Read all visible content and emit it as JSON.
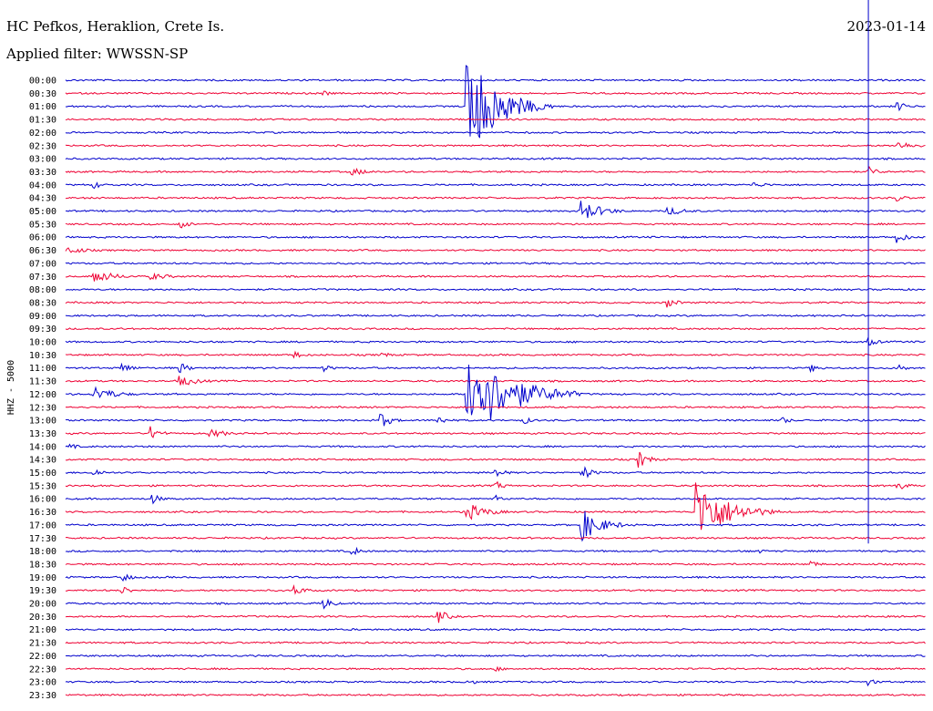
{
  "header": {
    "station": "HC Pefkos, Heraklion, Crete Is.",
    "filter": "Applied filter: WWSSN-SP",
    "date": "2023-01-14"
  },
  "chart_data": {
    "type": "line",
    "title": "HC Pefkos, Heraklion, Crete Is.",
    "subtitle": "Applied filter: WWSSN-SP",
    "ylabel": "HHZ - 5000",
    "row_labels": [
      "00:00",
      "00:30",
      "01:00",
      "01:30",
      "02:00",
      "02:30",
      "03:00",
      "03:30",
      "04:00",
      "04:30",
      "05:00",
      "05:30",
      "06:00",
      "06:30",
      "07:00",
      "07:30",
      "08:00",
      "08:30",
      "09:00",
      "09:30",
      "10:00",
      "10:30",
      "11:00",
      "11:30",
      "12:00",
      "12:30",
      "13:00",
      "13:30",
      "14:00",
      "14:30",
      "15:00",
      "15:30",
      "16:00",
      "16:30",
      "17:00",
      "17:30",
      "18:00",
      "18:30",
      "19:00",
      "19:30",
      "20:00",
      "20:30",
      "21:00",
      "21:30",
      "22:00",
      "22:30",
      "23:00",
      "23:30"
    ],
    "row_colors": [
      "#0000cc",
      "#ee0033"
    ],
    "minutes_per_row": 30,
    "current_time_marker": {
      "row": 35,
      "minute": 28,
      "color": "#0000cc"
    },
    "events": [
      {
        "row": 1,
        "minute": 9,
        "amp": 3,
        "dur": 1
      },
      {
        "row": 2,
        "minute": 14,
        "amp": 60,
        "dur": 3
      },
      {
        "row": 2,
        "minute": 29,
        "amp": 6,
        "dur": 1
      },
      {
        "row": 5,
        "minute": 29,
        "amp": 5,
        "dur": 2
      },
      {
        "row": 7,
        "minute": 10,
        "amp": 4,
        "dur": 2
      },
      {
        "row": 7,
        "minute": 28,
        "amp": 6,
        "dur": 1
      },
      {
        "row": 8,
        "minute": 1,
        "amp": 4,
        "dur": 1
      },
      {
        "row": 8,
        "minute": 24,
        "amp": 3,
        "dur": 2
      },
      {
        "row": 9,
        "minute": 29,
        "amp": 4,
        "dur": 1
      },
      {
        "row": 10,
        "minute": 18,
        "amp": 12,
        "dur": 2
      },
      {
        "row": 10,
        "minute": 21,
        "amp": 5,
        "dur": 2
      },
      {
        "row": 11,
        "minute": 4,
        "amp": 5,
        "dur": 1
      },
      {
        "row": 12,
        "minute": 29,
        "amp": 7,
        "dur": 1
      },
      {
        "row": 13,
        "minute": 0,
        "amp": 5,
        "dur": 2
      },
      {
        "row": 15,
        "minute": 1,
        "amp": 8,
        "dur": 2
      },
      {
        "row": 15,
        "minute": 3,
        "amp": 4,
        "dur": 2
      },
      {
        "row": 17,
        "minute": 21,
        "amp": 6,
        "dur": 1
      },
      {
        "row": 20,
        "minute": 28,
        "amp": 5,
        "dur": 1
      },
      {
        "row": 21,
        "minute": 8,
        "amp": 4,
        "dur": 1
      },
      {
        "row": 21,
        "minute": 11,
        "amp": 4,
        "dur": 1
      },
      {
        "row": 22,
        "minute": 2,
        "amp": 6,
        "dur": 1
      },
      {
        "row": 22,
        "minute": 4,
        "amp": 6,
        "dur": 1
      },
      {
        "row": 22,
        "minute": 9,
        "amp": 4,
        "dur": 1
      },
      {
        "row": 22,
        "minute": 26,
        "amp": 5,
        "dur": 1
      },
      {
        "row": 22,
        "minute": 29,
        "amp": 5,
        "dur": 1
      },
      {
        "row": 23,
        "minute": 4,
        "amp": 6,
        "dur": 2
      },
      {
        "row": 24,
        "minute": 1,
        "amp": 9,
        "dur": 2
      },
      {
        "row": 24,
        "minute": 14,
        "amp": 55,
        "dur": 4
      },
      {
        "row": 24,
        "minute": 17,
        "amp": 4,
        "dur": 2
      },
      {
        "row": 26,
        "minute": 11,
        "amp": 9,
        "dur": 1
      },
      {
        "row": 26,
        "minute": 13,
        "amp": 5,
        "dur": 1
      },
      {
        "row": 26,
        "minute": 16,
        "amp": 4,
        "dur": 1
      },
      {
        "row": 26,
        "minute": 25,
        "amp": 4,
        "dur": 1
      },
      {
        "row": 27,
        "minute": 3,
        "amp": 8,
        "dur": 1
      },
      {
        "row": 27,
        "minute": 5,
        "amp": 5,
        "dur": 2
      },
      {
        "row": 28,
        "minute": 0,
        "amp": 5,
        "dur": 1
      },
      {
        "row": 29,
        "minute": 20,
        "amp": 10,
        "dur": 1
      },
      {
        "row": 30,
        "minute": 1,
        "amp": 5,
        "dur": 1
      },
      {
        "row": 30,
        "minute": 15,
        "amp": 6,
        "dur": 1
      },
      {
        "row": 30,
        "minute": 18,
        "amp": 9,
        "dur": 1
      },
      {
        "row": 31,
        "minute": 15,
        "amp": 5,
        "dur": 1
      },
      {
        "row": 31,
        "minute": 29,
        "amp": 6,
        "dur": 1
      },
      {
        "row": 32,
        "minute": 3,
        "amp": 6,
        "dur": 1
      },
      {
        "row": 32,
        "minute": 15,
        "amp": 4,
        "dur": 1
      },
      {
        "row": 33,
        "minute": 14,
        "amp": 10,
        "dur": 2
      },
      {
        "row": 33,
        "minute": 22,
        "amp": 36,
        "dur": 3
      },
      {
        "row": 34,
        "minute": 18,
        "amp": 18,
        "dur": 2
      },
      {
        "row": 36,
        "minute": 10,
        "amp": 5,
        "dur": 1
      },
      {
        "row": 36,
        "minute": 24,
        "amp": 4,
        "dur": 1
      },
      {
        "row": 37,
        "minute": 26,
        "amp": 4,
        "dur": 1
      },
      {
        "row": 38,
        "minute": 2,
        "amp": 5,
        "dur": 1
      },
      {
        "row": 39,
        "minute": 2,
        "amp": 5,
        "dur": 1
      },
      {
        "row": 39,
        "minute": 8,
        "amp": 6,
        "dur": 1
      },
      {
        "row": 40,
        "minute": 9,
        "amp": 7,
        "dur": 1
      },
      {
        "row": 41,
        "minute": 13,
        "amp": 8,
        "dur": 1
      },
      {
        "row": 45,
        "minute": 15,
        "amp": 3,
        "dur": 1
      },
      {
        "row": 46,
        "minute": 14,
        "amp": 4,
        "dur": 1
      },
      {
        "row": 46,
        "minute": 28,
        "amp": 4,
        "dur": 1
      }
    ]
  }
}
